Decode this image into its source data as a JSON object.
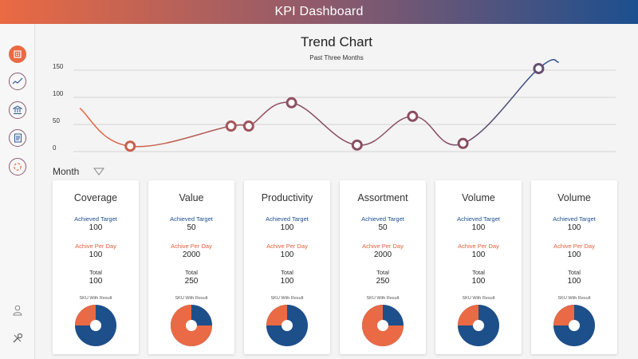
{
  "header": {
    "title": "KPI Dashboard"
  },
  "sidebar": {
    "items": [
      {
        "name": "home-icon",
        "active": true
      },
      {
        "name": "trend-icon",
        "active": false
      },
      {
        "name": "bank-icon",
        "active": false
      },
      {
        "name": "report-icon",
        "active": false
      },
      {
        "name": "circle-chart-icon",
        "active": false
      }
    ],
    "bottom": [
      {
        "name": "user-icon"
      },
      {
        "name": "settings-icon"
      }
    ]
  },
  "chart_data": {
    "type": "line",
    "title": "Trend Chart",
    "subtitle": "Past Three Months",
    "y_ticks": [
      "150",
      "100",
      "50",
      "0"
    ],
    "ylim": [
      0,
      150
    ],
    "grid": true,
    "points": [
      {
        "x": 0.0,
        "y": 80,
        "marker": false
      },
      {
        "x": 1.0,
        "y": 10,
        "marker": true
      },
      {
        "x": 3.0,
        "y": 47,
        "marker": true
      },
      {
        "x": 3.35,
        "y": 47,
        "marker": true
      },
      {
        "x": 4.2,
        "y": 90,
        "marker": true
      },
      {
        "x": 5.5,
        "y": 12,
        "marker": true
      },
      {
        "x": 6.6,
        "y": 65,
        "marker": true
      },
      {
        "x": 7.6,
        "y": 15,
        "marker": true
      },
      {
        "x": 9.1,
        "y": 153,
        "marker": true
      },
      {
        "x": 9.5,
        "y": 165,
        "marker": false
      }
    ],
    "colors": {
      "start": "#ea6a43",
      "mid": "#8a4e63",
      "end": "#1e4f8d",
      "grid": "#c9c9c9"
    }
  },
  "filter": {
    "label": "Month"
  },
  "labels": {
    "achieved": "Achieved Target",
    "per_day": "Achive Per Day",
    "total": "Total",
    "sku": "SKU With Result"
  },
  "cards": [
    {
      "title": "Coverage",
      "achieved": "100",
      "per_day": "100",
      "total": "100",
      "pie_orange_fraction": 0.25
    },
    {
      "title": "Value",
      "achieved": "50",
      "per_day": "2000",
      "total": "250",
      "pie_orange_fraction": 0.75
    },
    {
      "title": "Productivity",
      "achieved": "100",
      "per_day": "100",
      "total": "100",
      "pie_orange_fraction": 0.25
    },
    {
      "title": "Assortment",
      "achieved": "50",
      "per_day": "2000",
      "total": "250",
      "pie_orange_fraction": 0.75
    },
    {
      "title": "Volume",
      "achieved": "100",
      "per_day": "100",
      "total": "100",
      "pie_orange_fraction": 0.25
    },
    {
      "title": "Volume",
      "achieved": "100",
      "per_day": "100",
      "total": "100",
      "pie_orange_fraction": 0.25
    }
  ],
  "colors": {
    "orange": "#e96a45",
    "blue": "#1d4f8a"
  }
}
